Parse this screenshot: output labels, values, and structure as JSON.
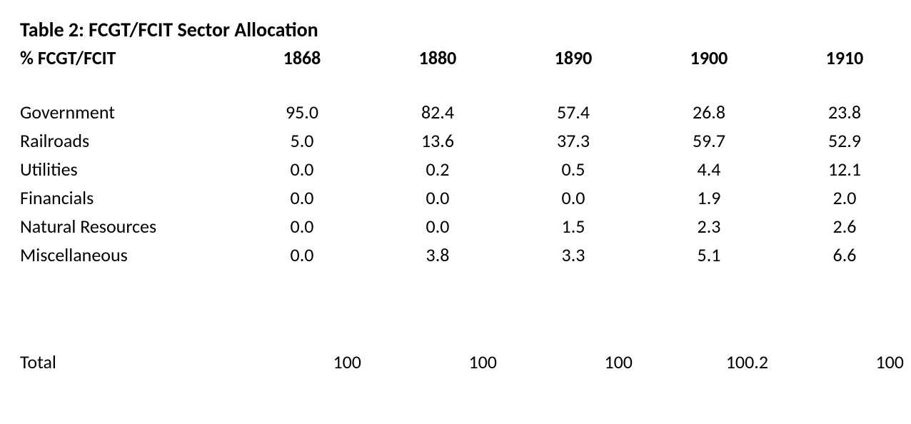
{
  "table": {
    "title": "Table 2: FCGT/FCIT Sector Allocation",
    "row_header_label": "% FCGT/FCIT",
    "columns": [
      "1868",
      "1880",
      "1890",
      "1900",
      "1910"
    ],
    "rows": [
      {
        "label": "Government",
        "values": [
          "95.0",
          "82.4",
          "57.4",
          "26.8",
          "23.8"
        ]
      },
      {
        "label": "Railroads",
        "values": [
          "5.0",
          "13.6",
          "37.3",
          "59.7",
          "52.9"
        ]
      },
      {
        "label": "Utilities",
        "values": [
          "0.0",
          "0.2",
          "0.5",
          "4.4",
          "12.1"
        ]
      },
      {
        "label": "Financials",
        "values": [
          "0.0",
          "0.0",
          "0.0",
          "1.9",
          "2.0"
        ]
      },
      {
        "label": "Natural Resources",
        "values": [
          "0.0",
          "0.0",
          "1.5",
          "2.3",
          "2.6"
        ]
      },
      {
        "label": "Miscellaneous",
        "values": [
          "0.0",
          "3.8",
          "3.3",
          "5.1",
          "6.6"
        ]
      }
    ],
    "total": {
      "label": "Total",
      "values": [
        "100",
        "100",
        "100",
        "100.2",
        "100"
      ]
    },
    "style": {
      "background_color": "#ffffff",
      "text_color": "#000000",
      "font_family": "Calibri",
      "title_fontsize": 28,
      "header_fontsize": 26,
      "body_fontsize": 26,
      "title_fontweight": "bold",
      "header_fontweight": "bold",
      "body_fontweight": "normal",
      "value_alignment": "center",
      "total_value_alignment": "right"
    }
  }
}
